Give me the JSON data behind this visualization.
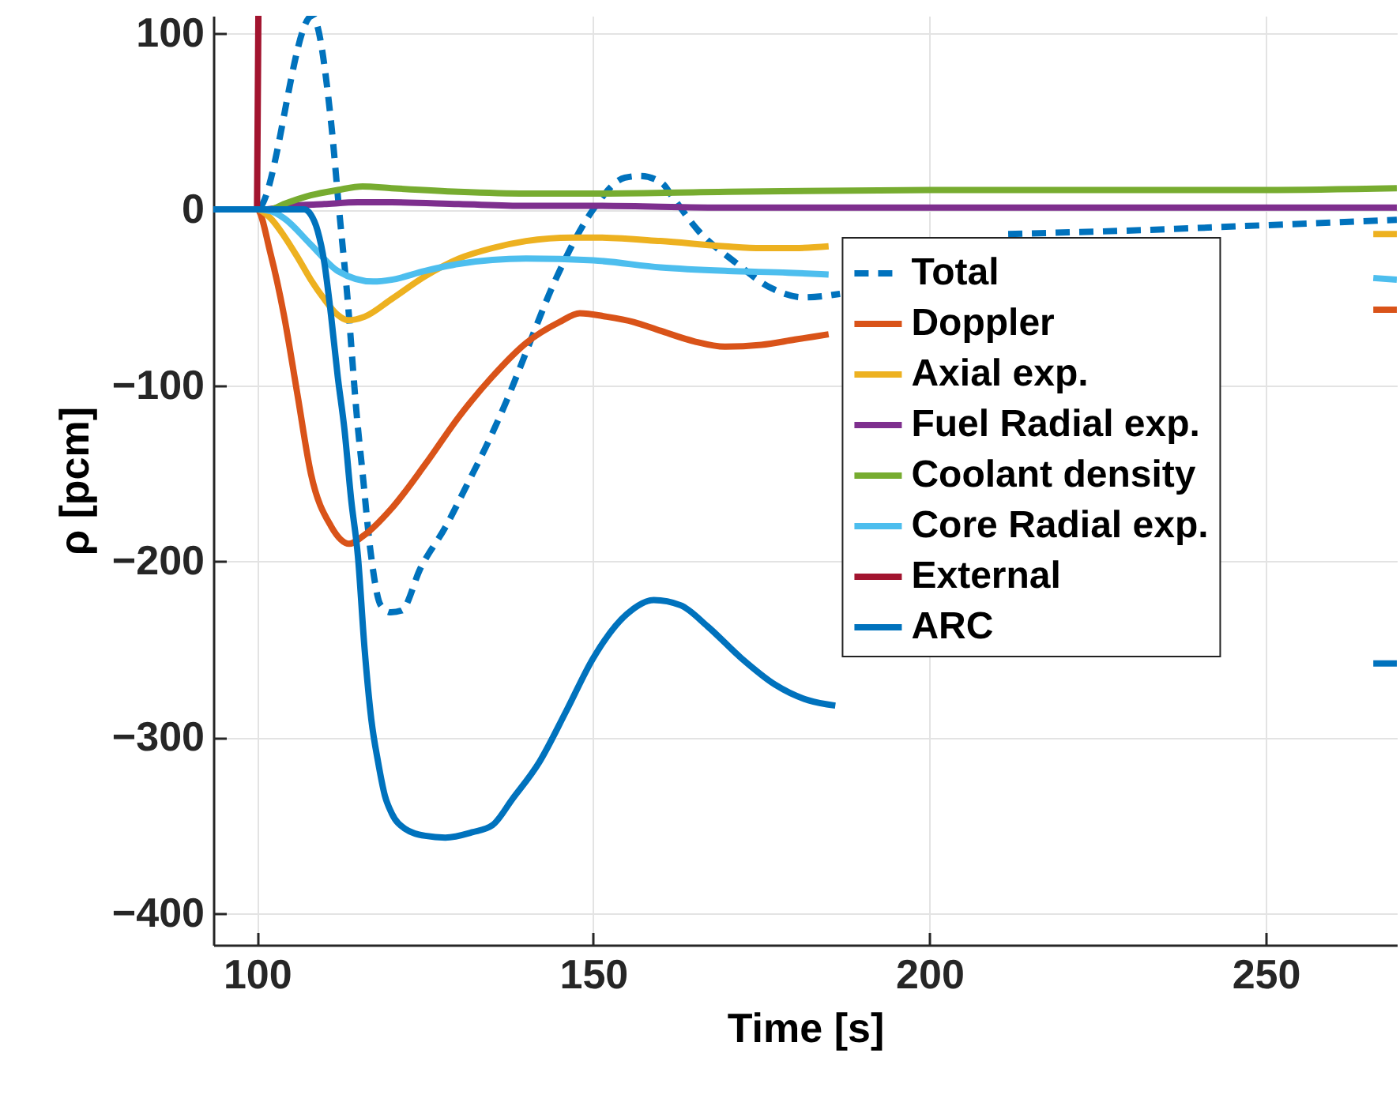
{
  "chart_data": {
    "type": "line",
    "xlabel": "Time [s]",
    "ylabel": "ρ [pcm]",
    "xlim": [
      93.5,
      269.5
    ],
    "ylim": [
      -418,
      110
    ],
    "xticks": [
      100,
      150,
      200,
      250
    ],
    "yticks": [
      -400,
      -300,
      -200,
      -100,
      0,
      100
    ],
    "grid": true,
    "legend": "right",
    "line_style": "solid",
    "series": [
      {
        "name": "Total",
        "color": "#0072bd",
        "line_style": "dashed",
        "x": [
          93.5,
          100,
          108.2,
          111,
          112.2,
          113.4,
          114.9,
          115.7,
          116.9,
          118.4,
          119.9,
          121.5,
          124.3,
          128.1,
          131.3,
          134.4,
          137.2,
          139.1,
          144.5,
          150,
          154.7,
          157,
          160.2,
          161.8,
          165.6,
          171.1,
          176.6,
          181.3,
          186.7,
          200,
          211.7,
          230,
          250,
          269.5
        ],
        "values": [
          0,
          0,
          110,
          50,
          0,
          -48,
          -120,
          -150,
          -195,
          -225,
          -229,
          -228,
          -204,
          -180,
          -156,
          -132,
          -108,
          -90,
          -39,
          0,
          18,
          19,
          15,
          7,
          -12,
          -30,
          -45,
          -50,
          -48,
          null,
          -14,
          -12,
          -9,
          -6
        ]
      },
      {
        "name": "Doppler",
        "color": "#d95319",
        "x": [
          93.5,
          100,
          102,
          104,
          106,
          108,
          111,
          113.7,
          116,
          120,
          125,
          130,
          135,
          140,
          145,
          148,
          152,
          156,
          160,
          165,
          169.6,
          175,
          180,
          185,
          200,
          266,
          269.5
        ],
        "values": [
          0,
          0,
          -25,
          -60,
          -105,
          -150,
          -180,
          -190,
          -185,
          -170,
          -145,
          -118,
          -95,
          -76,
          -64,
          -59,
          -61,
          -64,
          -69,
          -75,
          -78,
          -77,
          -74,
          -71,
          null,
          -57,
          -57
        ]
      },
      {
        "name": "Axial exp.",
        "color": "#edb120",
        "x": [
          93.5,
          100,
          102,
          104,
          106,
          108,
          110,
          112,
          113.5,
          116,
          120,
          125,
          130,
          135,
          140,
          146.8,
          150,
          160,
          169.6,
          175,
          180,
          185,
          200,
          266,
          269.5
        ],
        "values": [
          0,
          0,
          -5,
          -15,
          -27,
          -40,
          -51,
          -60,
          -63,
          -61,
          -51,
          -38,
          -28,
          -22,
          -18,
          -16,
          -16,
          -18,
          -21,
          -22,
          -22,
          -21,
          null,
          -14,
          -14
        ]
      },
      {
        "name": "Fuel Radial exp.",
        "color": "#7e2f8e",
        "x": [
          93.5,
          100,
          101,
          105,
          110,
          115,
          120,
          130,
          140,
          150,
          170,
          200,
          269.5
        ],
        "values": [
          0,
          0,
          0,
          2,
          3,
          4,
          4,
          3,
          2,
          2,
          1,
          1,
          1
        ]
      },
      {
        "name": "Coolant density",
        "color": "#77ac30",
        "x": [
          93.5,
          100,
          102,
          104,
          108,
          112,
          115.7,
          120,
          130,
          140,
          150,
          170,
          200,
          250,
          269.5
        ],
        "values": [
          0,
          0,
          0,
          3,
          8,
          11,
          13,
          12,
          10,
          9,
          9,
          10,
          11,
          11,
          12
        ]
      },
      {
        "name": "Core Radial exp.",
        "color": "#4dbeee",
        "x": [
          93.5,
          100,
          102,
          104,
          108,
          112,
          117.3,
          120,
          125,
          130,
          140,
          150,
          160,
          170,
          179,
          185,
          200,
          266,
          269.5
        ],
        "values": [
          0,
          0,
          -1,
          -5,
          -20,
          -35,
          -41,
          -40,
          -35,
          -31,
          -28,
          -29,
          -33,
          -35,
          -36,
          -37,
          null,
          -39,
          -40
        ]
      },
      {
        "name": "External",
        "color": "#a2142f",
        "x": [
          93.5,
          100,
          100.2
        ],
        "values": [
          0,
          0,
          110
        ]
      },
      {
        "name": "ARC",
        "color": "#0072bd",
        "x": [
          93.5,
          100,
          107,
          108,
          109,
          110,
          111,
          112,
          113,
          114,
          115,
          116,
          117,
          118,
          119,
          120,
          122,
          125,
          128,
          132,
          135,
          138,
          142,
          146,
          150,
          155,
          159,
          163,
          167,
          172,
          177,
          182,
          186,
          200,
          266,
          269.5
        ],
        "values": [
          0,
          0,
          0,
          -3,
          -12,
          -30,
          -60,
          -95,
          -125,
          -165,
          -197,
          -250,
          -290,
          -314,
          -333,
          -343,
          -352,
          -356,
          -357,
          -354,
          -350,
          -335,
          -314,
          -285,
          -255,
          -230,
          -222,
          -225,
          -237,
          -255,
          -270,
          -279,
          -282,
          null,
          -258,
          -258
        ]
      }
    ]
  }
}
